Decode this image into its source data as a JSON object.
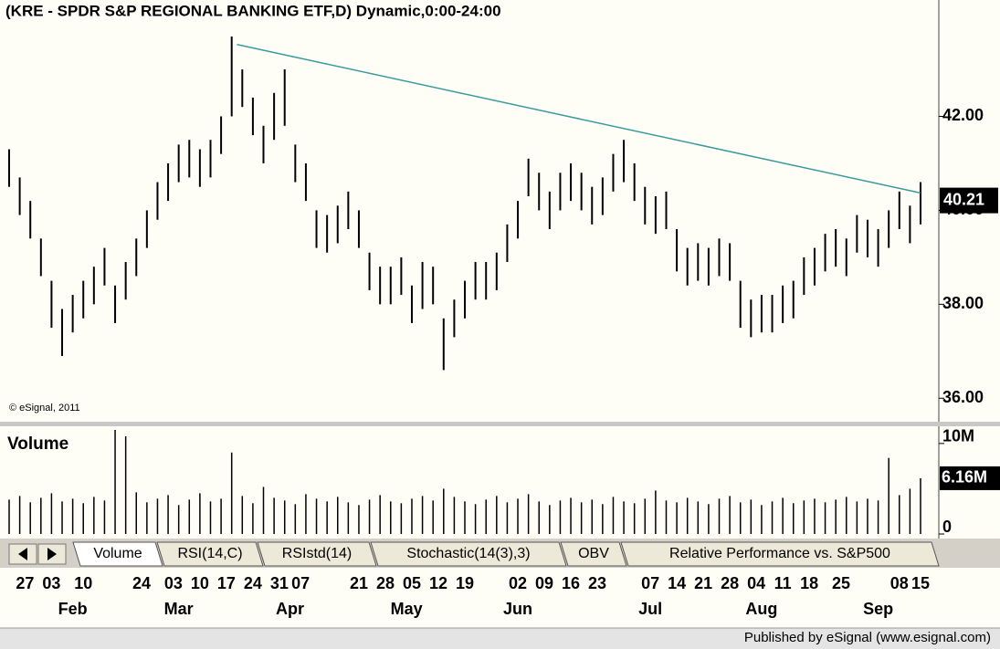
{
  "chart_data": [
    {
      "type": "ohlc",
      "title": "(KRE - SPDR S&P REGIONAL BANKING ETF,D) Dynamic,0:00-24:00",
      "annotation": "© eSignal, 2011",
      "x": [
        0,
        2,
        4,
        6,
        8,
        10,
        12,
        14,
        16,
        18,
        20,
        22,
        24,
        26,
        28,
        30,
        32,
        34,
        36,
        38,
        40,
        42,
        44,
        46,
        48,
        50,
        52,
        54,
        56,
        58,
        60,
        62,
        64,
        66,
        68,
        70,
        72,
        74,
        76,
        78,
        80,
        82,
        84,
        86,
        88,
        90,
        92,
        94,
        96,
        98,
        100,
        102,
        104,
        106,
        108,
        110,
        112,
        114,
        116,
        118,
        120,
        122,
        124,
        126,
        128,
        130,
        132,
        134,
        136,
        138,
        140,
        142,
        144,
        146,
        148,
        150,
        152,
        154,
        156,
        158,
        160,
        162,
        164,
        166,
        168,
        170,
        172
      ],
      "high": [
        41.3,
        40.7,
        40.2,
        39.4,
        38.5,
        37.9,
        38.2,
        38.5,
        38.8,
        39.2,
        38.4,
        38.9,
        39.4,
        40.0,
        40.6,
        41.0,
        41.4,
        41.5,
        41.3,
        41.5,
        42.0,
        43.7,
        43.0,
        42.4,
        41.8,
        42.5,
        43.0,
        41.4,
        41.0,
        40.0,
        39.9,
        40.1,
        40.4,
        40.0,
        39.1,
        38.8,
        38.8,
        39.0,
        38.4,
        38.9,
        38.8,
        37.7,
        38.1,
        38.5,
        38.9,
        38.9,
        39.1,
        39.7,
        40.2,
        41.1,
        40.8,
        40.4,
        40.8,
        41.0,
        40.8,
        40.5,
        40.7,
        41.2,
        41.5,
        41.0,
        40.5,
        40.3,
        40.4,
        39.6,
        39.2,
        39.3,
        39.2,
        39.4,
        39.3,
        38.5,
        38.1,
        38.2,
        38.2,
        38.4,
        38.5,
        39.0,
        39.2,
        39.5,
        39.6,
        39.4,
        39.9,
        39.8,
        39.6,
        40.0,
        40.4,
        40.1,
        40.6
      ],
      "low": [
        40.5,
        39.9,
        39.4,
        38.6,
        37.5,
        36.9,
        37.4,
        37.7,
        38.0,
        38.4,
        37.6,
        38.1,
        38.6,
        39.2,
        39.8,
        40.2,
        40.6,
        40.7,
        40.5,
        40.7,
        41.2,
        42.0,
        42.2,
        41.6,
        41.0,
        41.5,
        41.8,
        40.6,
        40.2,
        39.2,
        39.1,
        39.3,
        39.6,
        39.2,
        38.3,
        38.0,
        38.0,
        38.2,
        37.6,
        37.9,
        38.0,
        36.6,
        37.3,
        37.7,
        38.1,
        38.1,
        38.3,
        38.9,
        39.4,
        40.3,
        40.0,
        39.6,
        40.0,
        40.2,
        40.0,
        39.7,
        39.9,
        40.4,
        40.6,
        40.2,
        39.7,
        39.5,
        39.6,
        38.7,
        38.4,
        38.5,
        38.4,
        38.6,
        38.5,
        37.5,
        37.3,
        37.4,
        37.4,
        37.6,
        37.7,
        38.2,
        38.4,
        38.7,
        38.8,
        38.6,
        39.1,
        39.0,
        38.8,
        39.2,
        39.6,
        39.3,
        39.7
      ],
      "color": "#000000",
      "xlim": [
        0,
        172
      ],
      "ylim": [
        35.5,
        44.05
      ],
      "yticks": [
        {
          "value": 36,
          "label": "36.00"
        },
        {
          "value": 38,
          "label": "38.00"
        },
        {
          "value": 40,
          "label": "40.00"
        },
        {
          "value": 42,
          "label": "42.00"
        }
      ],
      "last_price": {
        "value": 40.21,
        "label": "40.21"
      },
      "trendline": {
        "x": [
          43,
          172
        ],
        "y": [
          43.53,
          40.37
        ],
        "color": "#3a9a9a"
      }
    },
    {
      "type": "bar",
      "title": "Volume",
      "x": [
        0,
        2,
        4,
        6,
        8,
        10,
        12,
        14,
        16,
        18,
        20,
        22,
        24,
        26,
        28,
        30,
        32,
        34,
        36,
        38,
        40,
        42,
        44,
        46,
        48,
        50,
        52,
        54,
        56,
        58,
        60,
        62,
        64,
        66,
        68,
        70,
        72,
        74,
        76,
        78,
        80,
        82,
        84,
        86,
        88,
        90,
        92,
        94,
        96,
        98,
        100,
        102,
        104,
        106,
        108,
        110,
        112,
        114,
        116,
        118,
        120,
        122,
        124,
        126,
        128,
        130,
        132,
        134,
        136,
        138,
        140,
        142,
        144,
        146,
        148,
        150,
        152,
        154,
        156,
        158,
        160,
        162,
        164,
        166,
        168,
        170,
        172
      ],
      "values": [
        3.8,
        4.2,
        3.5,
        4.0,
        4.5,
        3.6,
        3.9,
        3.4,
        4.1,
        3.7,
        11.5,
        10.8,
        4.6,
        3.5,
        3.9,
        4.3,
        3.2,
        3.8,
        4.5,
        3.6,
        3.9,
        9.0,
        4.2,
        3.4,
        5.2,
        4.0,
        3.7,
        3.3,
        4.4,
        3.9,
        3.6,
        4.1,
        3.5,
        3.2,
        3.8,
        4.3,
        3.6,
        3.4,
        3.9,
        4.2,
        3.7,
        5.0,
        4.1,
        3.6,
        3.3,
        3.8,
        4.2,
        3.5,
        3.9,
        4.4,
        3.6,
        3.2,
        3.7,
        4.0,
        3.5,
        3.8,
        3.3,
        4.1,
        3.6,
        3.4,
        3.9,
        4.8,
        3.7,
        3.5,
        4.0,
        3.6,
        3.3,
        3.9,
        4.2,
        3.5,
        3.8,
        3.2,
        3.6,
        4.0,
        3.4,
        3.7,
        3.9,
        3.5,
        3.8,
        4.1,
        3.6,
        3.9,
        3.7,
        8.4,
        4.3,
        5.0,
        6.16
      ],
      "last_value_label": "6.16M",
      "color": "#000000",
      "xlim": [
        0,
        172
      ],
      "ylim": [
        0,
        11.8
      ],
      "yticks": [
        {
          "value": 0,
          "label": "0"
        },
        {
          "value": 10,
          "label": "10M"
        }
      ],
      "xticks": [
        {
          "value": 3,
          "label": "27"
        },
        {
          "value": 8,
          "label": "03"
        },
        {
          "value": 14,
          "label": "10"
        },
        {
          "value": 25,
          "label": "24"
        },
        {
          "value": 31,
          "label": "03"
        },
        {
          "value": 36,
          "label": "10"
        },
        {
          "value": 41,
          "label": "17"
        },
        {
          "value": 46,
          "label": "24"
        },
        {
          "value": 51,
          "label": "31"
        },
        {
          "value": 55,
          "label": "07"
        },
        {
          "value": 66,
          "label": "21"
        },
        {
          "value": 71,
          "label": "28"
        },
        {
          "value": 76,
          "label": "05"
        },
        {
          "value": 81,
          "label": "12"
        },
        {
          "value": 86,
          "label": "19"
        },
        {
          "value": 96,
          "label": "02"
        },
        {
          "value": 101,
          "label": "09"
        },
        {
          "value": 106,
          "label": "16"
        },
        {
          "value": 111,
          "label": "23"
        },
        {
          "value": 121,
          "label": "07"
        },
        {
          "value": 126,
          "label": "14"
        },
        {
          "value": 131,
          "label": "21"
        },
        {
          "value": 136,
          "label": "28"
        },
        {
          "value": 141,
          "label": "04"
        },
        {
          "value": 146,
          "label": "11"
        },
        {
          "value": 151,
          "label": "18"
        },
        {
          "value": 157,
          "label": "25"
        },
        {
          "value": 168,
          "label": "08"
        },
        {
          "value": 172,
          "label": "15"
        }
      ],
      "month_ticks": [
        {
          "value": 12,
          "label": "Feb"
        },
        {
          "value": 32,
          "label": "Mar"
        },
        {
          "value": 53,
          "label": "Apr"
        },
        {
          "value": 75,
          "label": "May"
        },
        {
          "value": 96,
          "label": "Jun"
        },
        {
          "value": 121,
          "label": "Jul"
        },
        {
          "value": 142,
          "label": "Aug"
        },
        {
          "value": 164,
          "label": "Sep"
        }
      ]
    }
  ],
  "tabs": [
    "Volume",
    "RSI(14,C)",
    "RSIstd(14)",
    "Stochastic(14(3),3)",
    "OBV",
    "Relative Performance vs. S&P500"
  ],
  "footer": "Published by eSignal (www.esignal.com)"
}
